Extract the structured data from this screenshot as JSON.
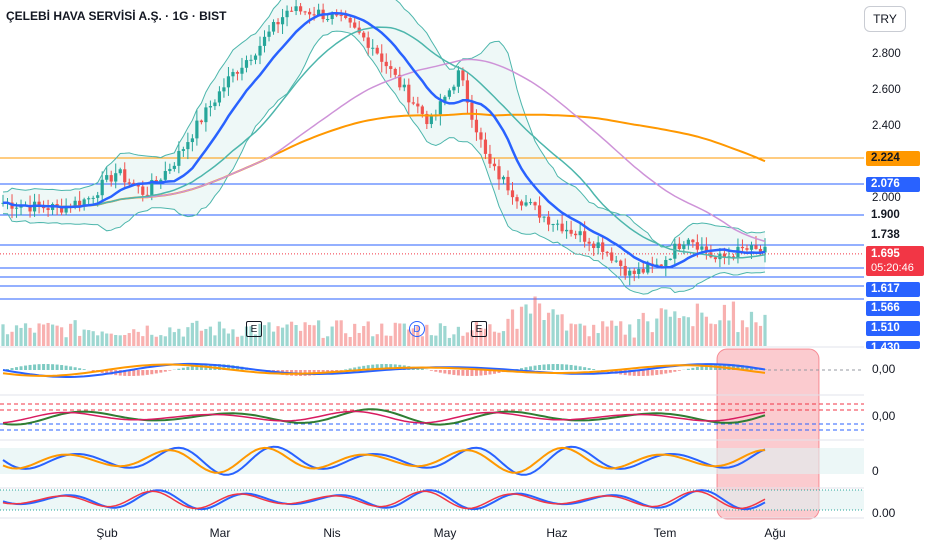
{
  "header": {
    "title": "ÇELEBİ HAVA SERVİSİ A.Ş. · 1G · BIST",
    "currency": "TRY"
  },
  "axis": {
    "price_ticks": [
      "2.800",
      "2.600",
      "2.400",
      "2.000"
    ],
    "x_labels": [
      "Şub",
      "Mar",
      "Nis",
      "May",
      "Haz",
      "Tem",
      "Ağu"
    ]
  },
  "price_tags": [
    {
      "text": "2.224",
      "bg": "#ff9800",
      "fg": "#131722"
    },
    {
      "text": "2.076",
      "bg": "#2962ff",
      "fg": "#ffffff"
    },
    {
      "text": "1.900",
      "bg": "#ffffff",
      "fg": "#131722"
    },
    {
      "text": "1.738",
      "bg": "#ffffff",
      "fg": "#131722"
    },
    {
      "text": "1.617",
      "bg": "#2962ff",
      "fg": "#ffffff"
    },
    {
      "text": "1.566",
      "bg": "#2962ff",
      "fg": "#ffffff"
    },
    {
      "text": "1.510",
      "bg": "#2962ff",
      "fg": "#ffffff"
    },
    {
      "text": "1.430",
      "bg": "#2962ff",
      "fg": "#ffffff"
    }
  ],
  "current": {
    "price": "1.695",
    "countdown": "05:20:46"
  },
  "events": [
    "E",
    "D",
    "E"
  ],
  "oscillators": [
    "0,00",
    "0,00",
    "0",
    "0.00"
  ],
  "colors": {
    "up": "#26a69a",
    "down": "#ef5350",
    "ma_blue": "#2962ff",
    "ma_teal": "#4db6ac",
    "ma_pink": "#ce93d8",
    "ma_orange": "#ff9800",
    "band": "#4db6ac"
  },
  "chart_data": {
    "type": "candlestick",
    "title": "ÇELEBİ HAVA SERVİSİ A.Ş. · 1G · BIST",
    "y_unit": "TRY",
    "ylim": [
      1.43,
      3.1
    ],
    "x_range": [
      "2024-01-22",
      "2024-07-29"
    ],
    "horizontal_levels": [
      2.224,
      2.076,
      1.9,
      1.738,
      1.617,
      1.566,
      1.51,
      1.43
    ],
    "last_price": 1.695,
    "close_series": [
      {
        "date": "2024-01-22",
        "close": 1.98
      },
      {
        "date": "2024-01-29",
        "close": 1.96
      },
      {
        "date": "2024-02-05",
        "close": 1.95
      },
      {
        "date": "2024-02-12",
        "close": 2.0
      },
      {
        "date": "2024-02-19",
        "close": 2.15
      },
      {
        "date": "2024-02-26",
        "close": 2.03
      },
      {
        "date": "2024-03-04",
        "close": 2.2
      },
      {
        "date": "2024-03-11",
        "close": 2.45
      },
      {
        "date": "2024-03-18",
        "close": 2.68
      },
      {
        "date": "2024-03-25",
        "close": 2.85
      },
      {
        "date": "2024-04-01",
        "close": 3.05
      },
      {
        "date": "2024-04-08",
        "close": 3.04
      },
      {
        "date": "2024-04-15",
        "close": 2.98
      },
      {
        "date": "2024-04-22",
        "close": 2.85
      },
      {
        "date": "2024-04-29",
        "close": 2.62
      },
      {
        "date": "2024-05-06",
        "close": 2.42
      },
      {
        "date": "2024-05-13",
        "close": 2.7
      },
      {
        "date": "2024-05-20",
        "close": 2.2
      },
      {
        "date": "2024-05-27",
        "close": 2.02
      },
      {
        "date": "2024-06-03",
        "close": 1.9
      },
      {
        "date": "2024-06-10",
        "close": 1.82
      },
      {
        "date": "2024-06-17",
        "close": 1.74
      },
      {
        "date": "2024-06-24",
        "close": 1.58
      },
      {
        "date": "2024-07-01",
        "close": 1.63
      },
      {
        "date": "2024-07-08",
        "close": 1.8
      },
      {
        "date": "2024-07-15",
        "close": 1.66
      },
      {
        "date": "2024-07-22",
        "close": 1.72
      },
      {
        "date": "2024-07-29",
        "close": 1.695
      }
    ]
  }
}
